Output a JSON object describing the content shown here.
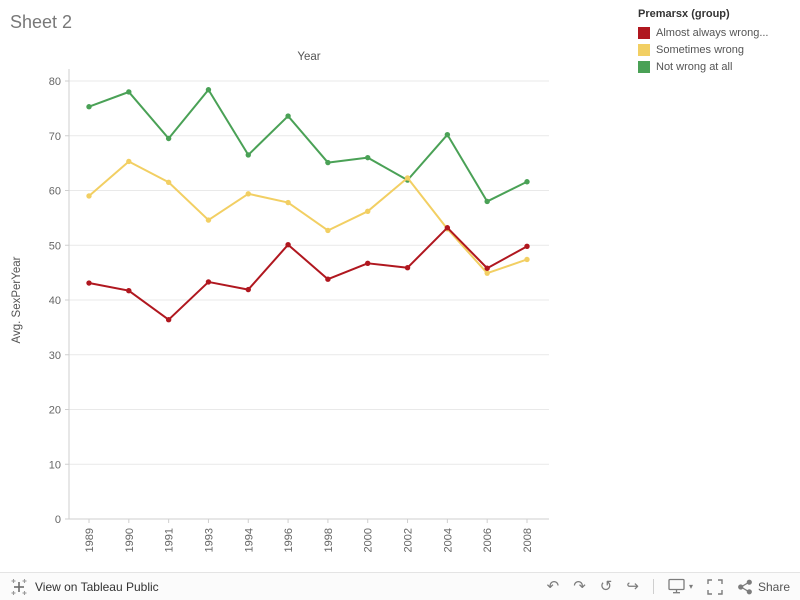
{
  "header": {
    "title": "Sheet 2"
  },
  "legend": {
    "title": "Premarsx (group)"
  },
  "chart_data": {
    "type": "line",
    "title": "Year",
    "xlabel": "Year",
    "ylabel": "Avg. SexPerYear",
    "ylim": [
      0,
      80
    ],
    "ytick_interval": 10,
    "grid": true,
    "legend_position": "top-right",
    "categories": [
      "1989",
      "1990",
      "1991",
      "1993",
      "1994",
      "1996",
      "1998",
      "2000",
      "2002",
      "2004",
      "2006",
      "2008"
    ],
    "series": [
      {
        "name": "Almost always wrong...",
        "color": "#b0171f",
        "values": [
          43.1,
          41.7,
          36.4,
          43.3,
          41.9,
          50.1,
          43.8,
          46.7,
          45.9,
          53.2,
          45.8,
          49.8
        ]
      },
      {
        "name": "Sometimes wrong",
        "color": "#f2cf63",
        "values": [
          59.0,
          65.3,
          61.5,
          54.6,
          59.4,
          57.8,
          52.7,
          56.2,
          62.3,
          53.0,
          44.9,
          47.4
        ]
      },
      {
        "name": "Not wrong at all",
        "color": "#4aa156",
        "values": [
          75.3,
          78.0,
          69.5,
          78.4,
          66.5,
          73.6,
          65.1,
          66.0,
          61.9,
          70.2,
          58.0,
          61.6
        ]
      }
    ]
  },
  "toolbar": {
    "view_label": "View on Tableau Public",
    "undo": "↶",
    "redo": "↷",
    "revert": "↺",
    "refresh": "↪",
    "caret": "▾",
    "share_label": "Share"
  }
}
